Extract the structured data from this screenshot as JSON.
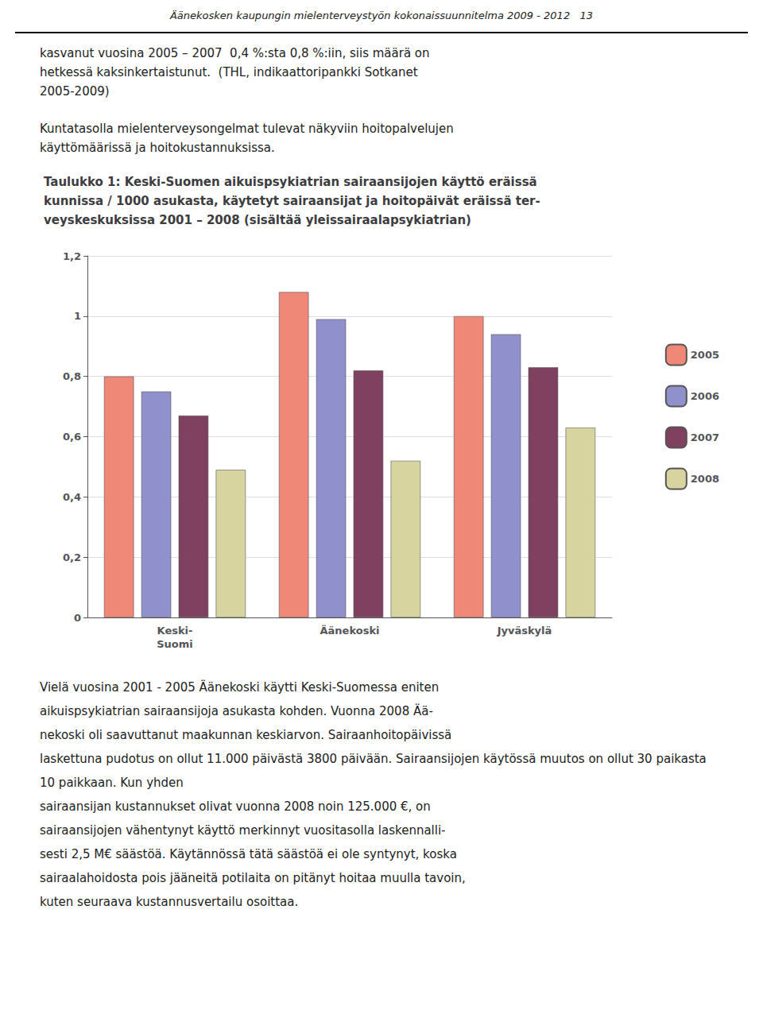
{
  "header": "Äänekosken kaupungin mielenterveystyön kokonaissuunnitelma 2009 - 2012   13",
  "paragraphs_before": [
    [
      "kasvanut vuosina 2005 – 2007  0,4 %:sta 0,8 %:iin, siis määrä on",
      "hetkessä kaksinkertaistunut.  (THL, indikaattoripankki Sotkanet",
      "2005-2009)"
    ],
    [
      "Kuntatasolla mielenterveysongelmat tulevat näkyviin hoitopalvelujen",
      "käyttömäärissä ja hoitokustannuksissa."
    ]
  ],
  "chart_data": {
    "type": "bar",
    "title": "Taulukko 1: Keski-Suomen aikuispsykiatrian sairaansijojen käyttö eräissä\nkunnissa / 1000 asukasta, käytetyt sairaansijat ja hoitopäivät eräissä ter-\nveyskeskuksissa 2001 – 2008 (sisältää yleissairaalapsykiatrian)",
    "categories": [
      "Keski-\nSuomi",
      "Äänekoski",
      "Jyväskylä"
    ],
    "series": [
      {
        "name": "2005",
        "color": "#F08878",
        "values": [
          0.8,
          1.08,
          1.0
        ]
      },
      {
        "name": "2006",
        "color": "#9090CC",
        "values": [
          0.75,
          0.99,
          0.94
        ]
      },
      {
        "name": "2007",
        "color": "#804060",
        "values": [
          0.67,
          0.82,
          0.83
        ]
      },
      {
        "name": "2008",
        "color": "#D8D4A0",
        "values": [
          0.49,
          0.52,
          0.63
        ]
      }
    ],
    "ylim": [
      0,
      1.2
    ],
    "yticks": [
      0,
      {
        "value": 0.2,
        "label": "0,2"
      },
      {
        "value": 0.4,
        "label": "0,4"
      },
      {
        "value": 0.6,
        "label": "0,6"
      },
      {
        "value": 0.8,
        "label": "0,8"
      },
      1,
      {
        "value": 1.2,
        "label": "1,2"
      }
    ],
    "grid": true,
    "legend": "right"
  },
  "paragraphs_after": [
    [
      "Vielä vuosina 2001 - 2005 Äänekoski käytti Keski-Suomessa eniten",
      "aikuispsykiatrian sairaansijoja asukasta kohden. Vuonna 2008 Ää-",
      "nekoski oli saavuttanut maakunnan keskiarvon. Sairaanhoitopäivissä",
      "laskettuna pudotus on ollut 11.000 päivästä 3800 päivään. Sairaansijojen käytössä muutos on ollut 30 paikasta 10 paikkaan. Kun yhden",
      "sairaansijan kustannukset olivat vuonna 2008 noin 125.000 €, on",
      "sairaansijojen vähentynyt käyttö merkinnyt vuositasolla laskennalli-",
      "sesti 2,5 M€ säästöä. Käytännössä tätä säästöä ei ole syntynyt, koska",
      "sairaalahoidosta pois jääneitä potilaita on pitänyt hoitaa muulla tavoin,",
      "kuten seuraava kustannusvertailu osoittaa."
    ]
  ]
}
